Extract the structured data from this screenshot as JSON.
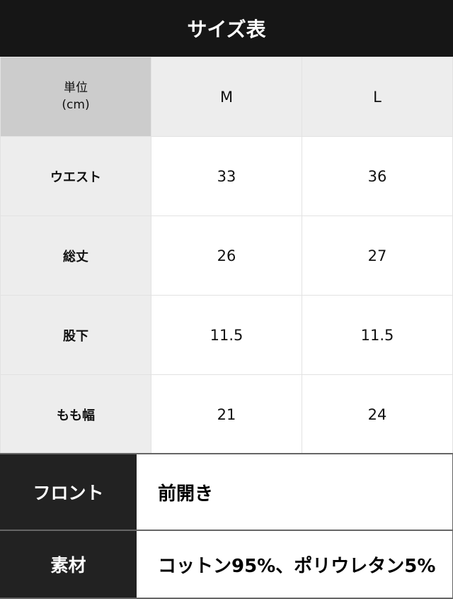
{
  "title": "サイズ表",
  "table": {
    "corner": {
      "line1": "単位",
      "line2": "(cm)"
    },
    "columns": [
      "M",
      "L"
    ],
    "rows": [
      {
        "label": "ウエスト",
        "values": [
          "33",
          "36"
        ]
      },
      {
        "label": "総丈",
        "values": [
          "26",
          "27"
        ]
      },
      {
        "label": "股下",
        "values": [
          "11.5",
          "11.5"
        ]
      },
      {
        "label": "もも幅",
        "values": [
          "21",
          "24"
        ]
      }
    ]
  },
  "details": [
    {
      "label": "フロント",
      "value": "前開き"
    },
    {
      "label": "素材",
      "value": "コットン95%、ポリウレタン5%"
    }
  ],
  "colors": {
    "header_bg": "#161616",
    "label_bg": "#222222",
    "corner_bg": "#cccccc",
    "cell_bg": "#ededed"
  }
}
